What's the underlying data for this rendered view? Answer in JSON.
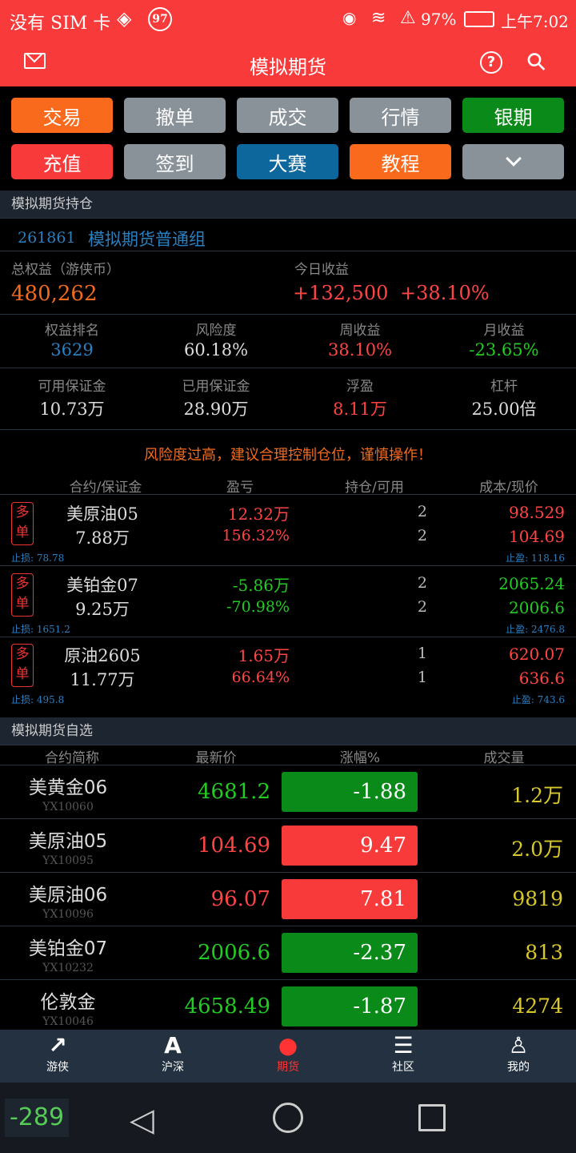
{
  "status_bar": {
    "carrier": "没有 SIM 卡",
    "badge": "97",
    "battery": "97%",
    "time": "上午7:02"
  },
  "header": {
    "title": "模拟期货"
  },
  "buttons": [
    {
      "label": "交易",
      "color": "#f96a1c"
    },
    {
      "label": "撤单",
      "color": "#8a9299"
    },
    {
      "label": "成交",
      "color": "#8a9299"
    },
    {
      "label": "行情",
      "color": "#8a9299"
    },
    {
      "label": "银期",
      "color": "#0a8a18"
    },
    {
      "label": "充值",
      "color": "#f93a3a"
    },
    {
      "label": "签到",
      "color": "#8a9299"
    },
    {
      "label": "大赛",
      "color": "#0e679c"
    },
    {
      "label": "教程",
      "color": "#f96a1c"
    },
    {
      "label": "",
      "color": "#8a9299"
    }
  ],
  "positions_section": {
    "title": "模拟期货持仓",
    "account_id": "261861",
    "group": "模拟期货普通组",
    "total_label": "总权益（游侠币）",
    "total": "480,262",
    "today_label": "今日收益",
    "today_value": "+132,500",
    "today_pct": "+38.10%",
    "stats": [
      {
        "label": "权益排名",
        "value": "3629"
      },
      {
        "label": "风险度",
        "value": "60.18%"
      },
      {
        "label": "周收益",
        "value": "38.10%"
      },
      {
        "label": "月收益",
        "value": "-23.65%"
      },
      {
        "label": "可用保证金",
        "value": "10.73万"
      },
      {
        "label": "已用保证金",
        "value": "28.90万"
      },
      {
        "label": "浮盈",
        "value": "8.11万"
      },
      {
        "label": "杠杆",
        "value": "25.00倍"
      }
    ],
    "warning": "风险度过高，建议合理控制仓位，谨慎操作！",
    "columns": [
      "合约/保证金",
      "盈亏",
      "持仓/可用",
      "成本/现价"
    ],
    "rows": [
      {
        "tag": "多单",
        "name": "美原油05",
        "margin": "7.88万",
        "pnl": "12.32万",
        "pnl_pct": "156.32%",
        "pos": "2",
        "avail": "2",
        "cost": "98.529",
        "price": "104.69",
        "stop_loss": "止损:  78.78",
        "take_profit": "止盈:  118.16",
        "up": true
      },
      {
        "tag": "多单",
        "name": "美铂金07",
        "margin": "9.25万",
        "pnl": "-5.86万",
        "pnl_pct": "-70.98%",
        "pos": "2",
        "avail": "2",
        "cost": "2065.24",
        "price": "2006.6",
        "stop_loss": "止损:  1651.2",
        "take_profit": "止盈:  2476.8",
        "up": false
      },
      {
        "tag": "多单",
        "name": "原油2605",
        "margin": "11.77万",
        "pnl": "1.65万",
        "pnl_pct": "66.64%",
        "pos": "1",
        "avail": "1",
        "cost": "620.07",
        "price": "636.6",
        "stop_loss": "止损:  495.8",
        "take_profit": "止盈:  743.6",
        "up": true
      }
    ]
  },
  "watchlist": {
    "title": "模拟期货自选",
    "columns": [
      "合约简称",
      "最新价",
      "涨幅%",
      "成交量"
    ],
    "rows": [
      {
        "name": "美黄金06",
        "code": "YX10060",
        "price": "4681.2",
        "change": "-1.88",
        "volume": "1.2万",
        "up": false
      },
      {
        "name": "美原油05",
        "code": "YX10095",
        "price": "104.69",
        "change": "9.47",
        "volume": "2.0万",
        "up": true
      },
      {
        "name": "美原油06",
        "code": "YX10096",
        "price": "96.07",
        "change": "7.81",
        "volume": "9819",
        "up": true
      },
      {
        "name": "美铂金07",
        "code": "YX10232",
        "price": "2006.6",
        "change": "-2.37",
        "volume": "813",
        "up": false
      },
      {
        "name": "伦敦金",
        "code": "YX10046",
        "price": "4658.49",
        "change": "-1.87",
        "volume": "4274",
        "up": false
      }
    ]
  },
  "floating_badge": "-289",
  "nav": [
    {
      "label": "游侠",
      "icon": "chart-icon"
    },
    {
      "label": "沪深",
      "icon": "letter-a-icon"
    },
    {
      "label": "期货",
      "icon": "globe-icon",
      "active": true
    },
    {
      "label": "社区",
      "icon": "list-icon"
    },
    {
      "label": "我的",
      "icon": "person-icon"
    }
  ]
}
